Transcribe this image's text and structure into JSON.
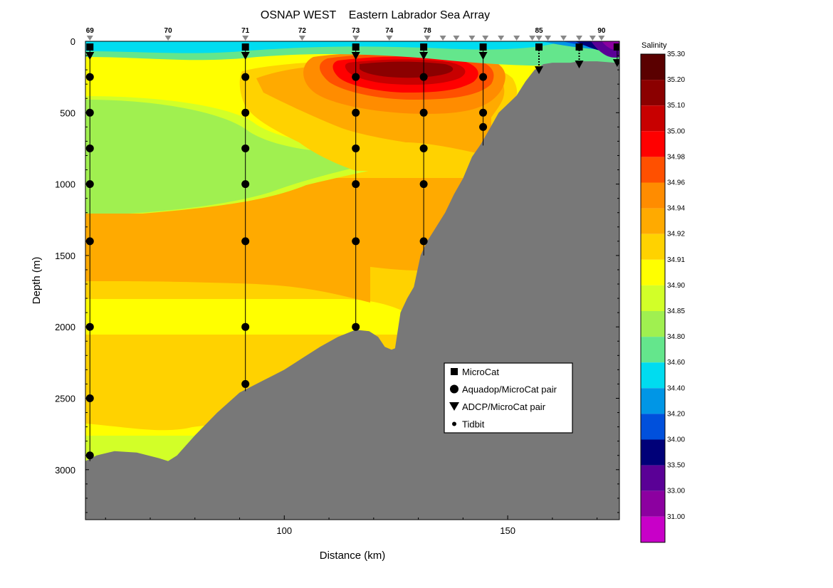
{
  "chart_data": {
    "type": "contour",
    "title": "OSNAP WEST    Eastern Labrador Sea Array",
    "xlabel": "Distance (km)",
    "ylabel": "Depth (m)",
    "xlim": [
      55.5,
      175
    ],
    "ylim": [
      3350,
      0
    ],
    "x_ticks": [
      100,
      150
    ],
    "y_ticks": [
      0,
      500,
      1000,
      1500,
      2000,
      2500,
      3000
    ],
    "colorbar": {
      "title": "Salinity",
      "levels": [
        "35.30",
        "35.20",
        "35.10",
        "35.00",
        "34.98",
        "34.96",
        "34.94",
        "34.92",
        "34.91",
        "34.90",
        "34.85",
        "34.80",
        "34.60",
        "34.40",
        "34.20",
        "34.00",
        "33.50",
        "33.00",
        "31.00"
      ],
      "colors": [
        "#5a0000",
        "#8b0000",
        "#c80000",
        "#ff0000",
        "#ff5000",
        "#ff8c00",
        "#ffaa00",
        "#ffd200",
        "#ffff00",
        "#d2ff28",
        "#a0f050",
        "#64e68c",
        "#00dcf0",
        "#0096e6",
        "#0050dc",
        "#000078",
        "#5a0096",
        "#8c00a0",
        "#c800c8"
      ]
    },
    "station_markers": [
      {
        "label": "69",
        "x": 56.5
      },
      {
        "label": "70",
        "x": 74
      },
      {
        "label": "71",
        "x": 91.3
      },
      {
        "label": "72",
        "x": 104
      },
      {
        "label": "73",
        "x": 116
      },
      {
        "label": "74",
        "x": 123.5
      },
      {
        "label": "78",
        "x": 132
      },
      {
        "label": "85",
        "x": 157
      },
      {
        "label": "90",
        "x": 171
      }
    ],
    "other_markers_x": [
      135.5,
      138.5,
      142,
      145,
      148.5,
      152,
      155.5,
      157,
      159,
      162.5,
      166,
      169
    ],
    "bathymetry": {
      "x": [
        55.5,
        58,
        62,
        67,
        72,
        74,
        76,
        80,
        85,
        90,
        95,
        100,
        104,
        108,
        112,
        116,
        119,
        121,
        122.5,
        124,
        124.8,
        126,
        127.5,
        129,
        130.5,
        132,
        134,
        136,
        138,
        140,
        142,
        144,
        146,
        148,
        150,
        152,
        154,
        156,
        158,
        160,
        162,
        164,
        166,
        168,
        170,
        172,
        174,
        175
      ],
      "depth": [
        2940,
        2900,
        2870,
        2880,
        2920,
        2940,
        2900,
        2760,
        2600,
        2460,
        2380,
        2300,
        2220,
        2140,
        2070,
        2020,
        2030,
        2070,
        2140,
        2160,
        2150,
        1900,
        1800,
        1720,
        1500,
        1400,
        1300,
        1200,
        1070,
        960,
        810,
        720,
        610,
        500,
        440,
        380,
        280,
        200,
        160,
        150,
        150,
        150,
        140,
        140,
        140,
        145,
        150,
        150
      ]
    },
    "moorings": [
      {
        "x": 56.5,
        "microcat": [
          40
        ],
        "adcp": [
          100
        ],
        "aquadop": [
          250,
          500,
          750,
          1000,
          1400,
          2000,
          2500,
          2900
        ],
        "bottom": 2940
      },
      {
        "x": 91.3,
        "microcat": [
          40
        ],
        "adcp": [
          100
        ],
        "aquadop": [
          250,
          500,
          750,
          1000,
          1400,
          2000,
          2400
        ],
        "bottom": 2450
      },
      {
        "x": 116,
        "microcat": [
          40
        ],
        "adcp": [
          100
        ],
        "aquadop": [
          250,
          500,
          750,
          1000,
          1400,
          2000
        ],
        "bottom": 2020
      },
      {
        "x": 131.2,
        "microcat": [
          40
        ],
        "adcp": [
          100
        ],
        "aquadop": [
          250,
          500,
          750,
          1000,
          1400
        ],
        "bottom": 1500
      },
      {
        "x": 144.5,
        "microcat": [
          40
        ],
        "adcp": [
          100
        ],
        "aquadop": [
          250,
          500,
          600
        ],
        "bottom": 730
      },
      {
        "x": 157,
        "microcat": [
          40
        ],
        "adcp": [
          200
        ],
        "aquadop": [],
        "bottom": 200,
        "dotted": true
      },
      {
        "x": 166,
        "microcat": [
          40
        ],
        "adcp": [
          160
        ],
        "aquadop": [],
        "bottom": 160,
        "dotted": true
      },
      {
        "x": 174.5,
        "microcat": [
          40
        ],
        "adcp": [
          150
        ],
        "aquadop": [],
        "bottom": 150,
        "dotted": false
      }
    ],
    "legend": {
      "position": "lower-right",
      "entries": [
        {
          "symbol": "square",
          "label": "MicroCat"
        },
        {
          "symbol": "circle",
          "label": "Aquadop/MicroCat pair"
        },
        {
          "symbol": "triangle",
          "label": "ADCP/MicroCat pair"
        },
        {
          "symbol": "small-circle",
          "label": "Tidbit"
        }
      ]
    }
  }
}
